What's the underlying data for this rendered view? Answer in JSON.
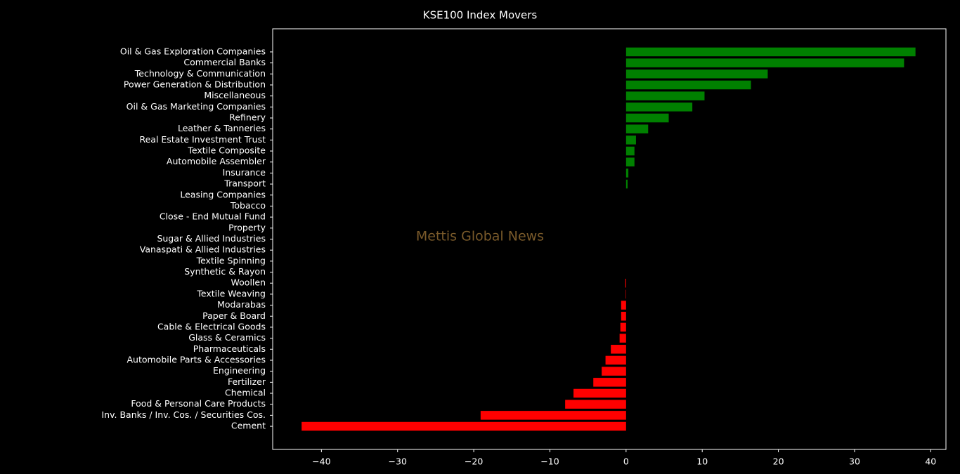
{
  "chart_data": {
    "type": "barh",
    "title": "KSE100 Index Movers",
    "watermark": "Mettis Global News",
    "categories": [
      "Oil & Gas Exploration Companies",
      "Commercial Banks",
      "Technology & Communication",
      "Power Generation & Distribution",
      "Miscellaneous",
      "Oil & Gas Marketing Companies",
      "Refinery",
      "Leather & Tanneries",
      "Real Estate Investment Trust",
      "Textile Composite",
      "Automobile Assembler",
      "Insurance",
      "Transport",
      "Leasing Companies",
      "Tobacco",
      "Close - End Mutual Fund",
      "Property",
      "Sugar & Allied Industries",
      "Vanaspati & Allied Industries",
      "Textile Spinning",
      "Synthetic & Rayon",
      "Woollen",
      "Textile Weaving",
      "Modarabas",
      "Paper & Board",
      "Cable & Electrical Goods",
      "Glass & Ceramics",
      "Pharmaceuticals",
      "Automobile Parts & Accessories",
      "Engineering",
      "Fertilizer",
      "Chemical",
      "Food & Personal Care Products",
      "Inv. Banks / Inv. Cos. / Securities Cos.",
      "Cement"
    ],
    "values": [
      38.0,
      36.5,
      18.6,
      16.4,
      10.3,
      8.7,
      5.6,
      2.9,
      1.3,
      1.1,
      1.1,
      0.3,
      0.2,
      0,
      0,
      0,
      0,
      0,
      0,
      0,
      0,
      -0.1,
      -0.05,
      -0.65,
      -0.65,
      -0.75,
      -0.85,
      -2.0,
      -2.7,
      -3.2,
      -4.3,
      -6.9,
      -8.0,
      -19.1,
      -42.6
    ],
    "color_positive": "#008000",
    "color_negative": "#ff0000",
    "xlim": [
      -46.4,
      42.0
    ],
    "xticks": [
      {
        "value": -40,
        "label": "−40"
      },
      {
        "value": -30,
        "label": "−30"
      },
      {
        "value": -20,
        "label": "−20"
      },
      {
        "value": -10,
        "label": "−10"
      },
      0,
      10,
      20,
      30,
      40
    ]
  }
}
